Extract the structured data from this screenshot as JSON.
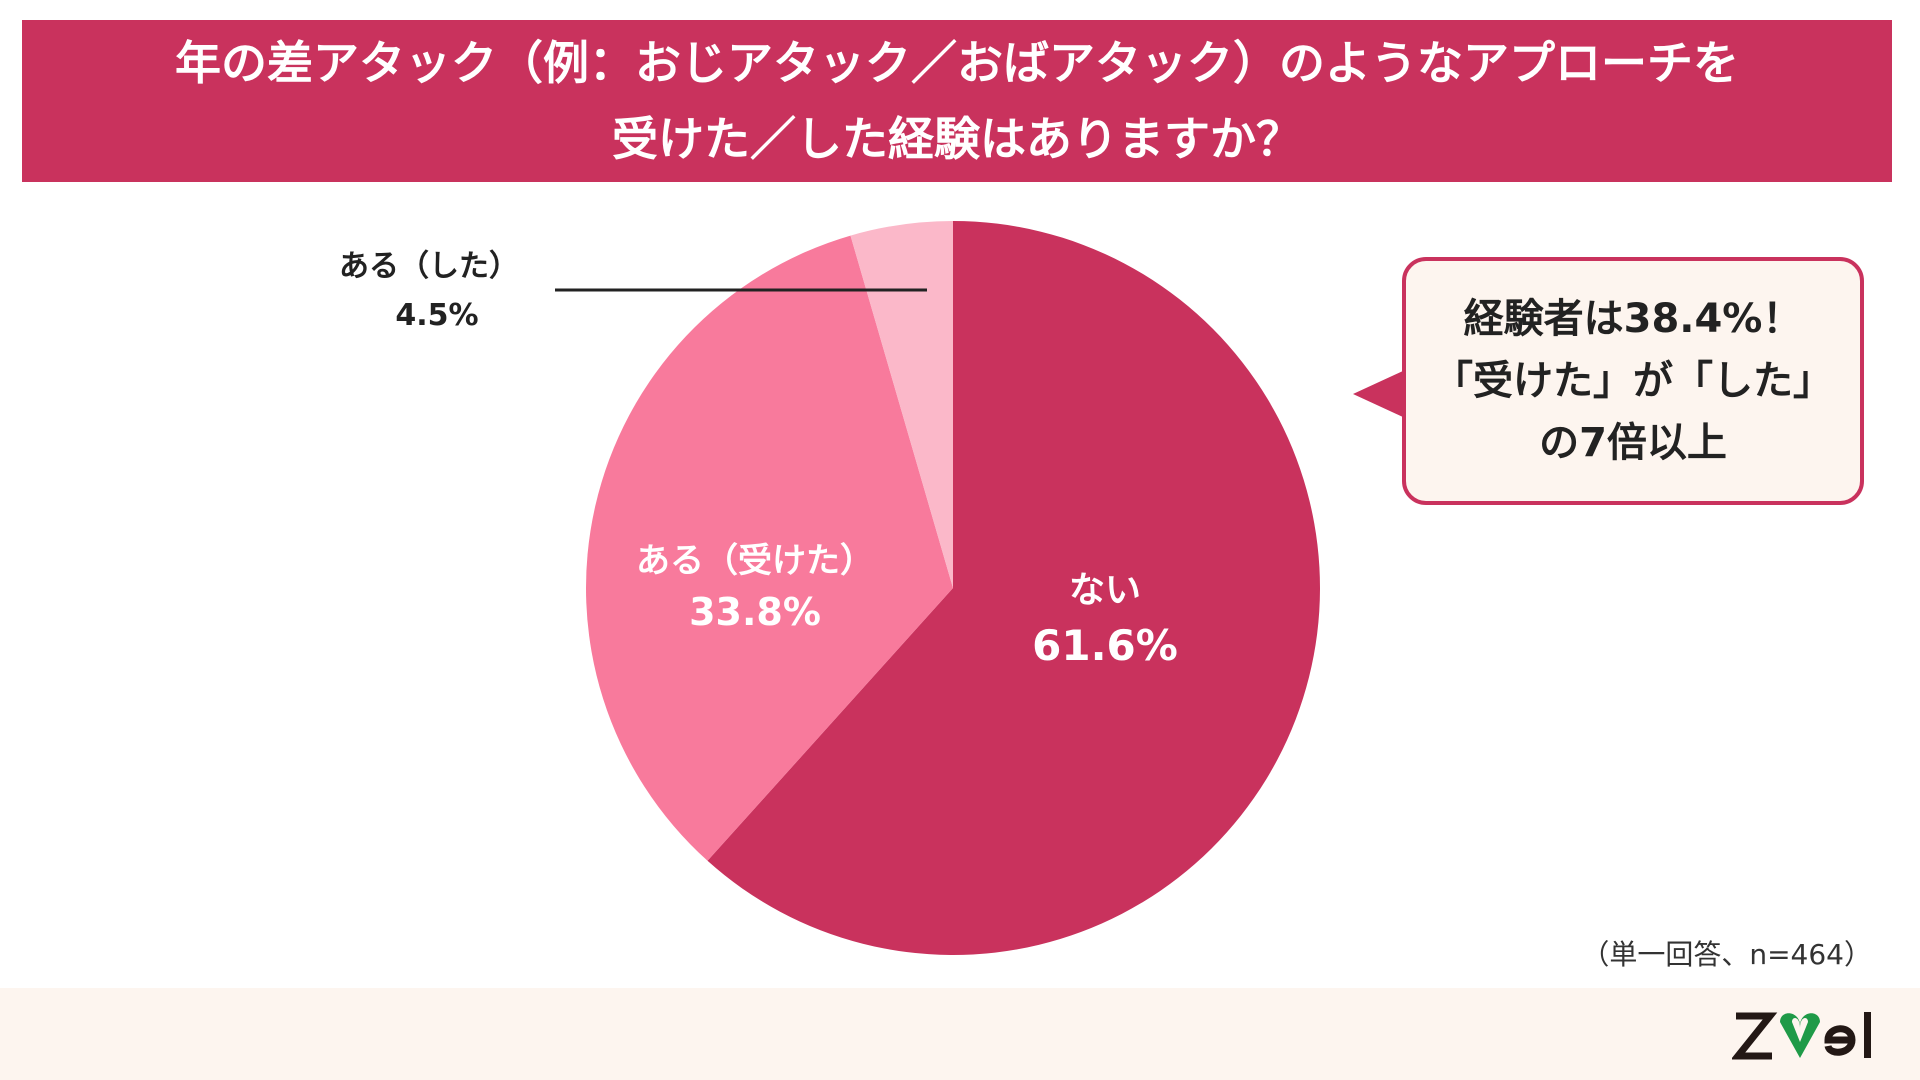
{
  "header": {
    "line1": "年の差アタック（例：おじアタック／おばアタック）のようなアプローチを",
    "line2": "受けた／した経験はありますか？"
  },
  "chart_data": {
    "type": "pie",
    "title": "年の差アタック（例：おじアタック／おばアタック）のようなアプローチを受けた／した経験はありますか？",
    "slices": [
      {
        "label": "ない",
        "value": 61.6,
        "display": "61.6%",
        "color": "#c9325d"
      },
      {
        "label": "ある（受けた）",
        "value": 33.8,
        "display": "33.8%",
        "color": "#f87a9c"
      },
      {
        "label": "ある（した）",
        "value": 4.5,
        "display": "4.5%",
        "color": "#fbb8c9"
      }
    ],
    "start": "top",
    "direction": "clockwise"
  },
  "callout": {
    "line1": "経験者は38.4%！",
    "line2": "「受けた」が「した」",
    "line3": "の7倍以上"
  },
  "note": "（単一回答、n=464）",
  "logo": "zwei",
  "colors": {
    "accent": "#c9325d",
    "footer": "#fdf5ef",
    "logo_green": "#1f9a48"
  }
}
